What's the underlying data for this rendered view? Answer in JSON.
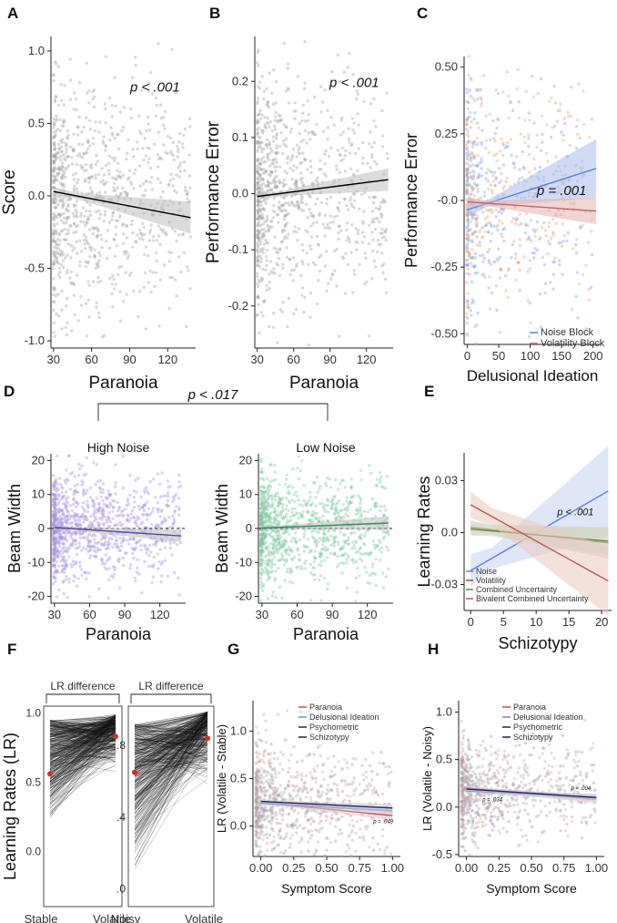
{
  "chart_data": [
    {
      "panel": "A",
      "type": "scatter",
      "xlabel": "Paranoia",
      "ylabel": "Score",
      "xlim": [
        28,
        142
      ],
      "ylim": [
        -1.05,
        1.1
      ],
      "xticks": [
        {
          "v": 30,
          "t": "30"
        },
        {
          "v": 60,
          "t": "60"
        },
        {
          "v": 90,
          "t": "90"
        },
        {
          "v": 120,
          "t": "120"
        }
      ],
      "yticks": [
        {
          "v": 1,
          "t": "1.0"
        },
        {
          "v": 0.5,
          "t": "0.5"
        },
        {
          "v": 0,
          "t": "0.0"
        },
        {
          "v": -0.5,
          "t": "-0.5"
        },
        {
          "v": -1,
          "t": "-1.0"
        }
      ],
      "annotation": {
        "x": 110,
        "y": 0.72,
        "t": "p < .001"
      },
      "series": [
        {
          "name": "Fit",
          "color": "#000000",
          "band": "#bdbdbd",
          "line": [
            [
              30,
              0.03
            ],
            [
              138,
              -0.15
            ]
          ],
          "ci": [
            0.02,
            0.11
          ]
        }
      ],
      "scatter": {
        "seed": 11,
        "color": "#9e9e9e",
        "n": 900,
        "ymean": 0.0,
        "ysd": 0.42
      }
    },
    {
      "panel": "B",
      "type": "scatter",
      "xlabel": "Paranoia",
      "ylabel": "Performance Error",
      "xlim": [
        28,
        142
      ],
      "ylim": [
        -0.275,
        0.28
      ],
      "xticks": [
        {
          "v": 30,
          "t": "30"
        },
        {
          "v": 60,
          "t": "60"
        },
        {
          "v": 90,
          "t": "90"
        },
        {
          "v": 120,
          "t": "120"
        }
      ],
      "yticks": [
        {
          "v": 0.2,
          "t": "0.2"
        },
        {
          "v": 0.1,
          "t": "0.1"
        },
        {
          "v": 0,
          "t": "0.0"
        },
        {
          "v": -0.1,
          "t": "-0.1"
        },
        {
          "v": -0.2,
          "t": "-0.2"
        }
      ],
      "annotation": {
        "x": 110,
        "y": 0.19,
        "t": "p < .001"
      },
      "series": [
        {
          "name": "Fit",
          "color": "#000000",
          "band": "#bdbdbd",
          "line": [
            [
              30,
              -0.005
            ],
            [
              138,
              0.025
            ]
          ],
          "ci": [
            0.004,
            0.02
          ]
        }
      ],
      "scatter": {
        "seed": 22,
        "color": "#9e9e9e",
        "n": 900,
        "ymean": 0.0,
        "ysd": 0.1
      }
    },
    {
      "panel": "C",
      "type": "scatter",
      "xlabel": "Delusional Ideation",
      "ylabel": "Performance Error",
      "xlim": [
        -5,
        212
      ],
      "ylim": [
        -0.54,
        0.54
      ],
      "xticks": [
        {
          "v": 0,
          "t": "0"
        },
        {
          "v": 50,
          "t": "50"
        },
        {
          "v": 100,
          "t": "100"
        },
        {
          "v": 150,
          "t": "150"
        },
        {
          "v": 200,
          "t": "200"
        }
      ],
      "yticks": [
        {
          "v": 0.5,
          "t": "0.50"
        },
        {
          "v": 0.25,
          "t": "0.25"
        },
        {
          "v": 0,
          "t": "-0.0"
        },
        {
          "v": -0.25,
          "t": "-0.25"
        },
        {
          "v": -0.5,
          "t": "-0.50"
        }
      ],
      "annotation": {
        "x": 150,
        "y": 0.02,
        "t": "p = .001"
      },
      "legend": {
        "entries": [
          "Noise Block",
          "Volatility Block"
        ],
        "pos": "bottom-right"
      },
      "series": [
        {
          "name": "Noise Block",
          "color": "#5b7fd6",
          "band": "#a9bbec",
          "line": [
            [
              0,
              -0.035
            ],
            [
              205,
              0.12
            ]
          ],
          "ci": [
            0.012,
            0.11
          ]
        },
        {
          "name": "Volatility Block",
          "color": "#c0675f",
          "band": "#e6b3ad",
          "line": [
            [
              0,
              -0.005
            ],
            [
              205,
              -0.04
            ]
          ],
          "ci": [
            0.01,
            0.05
          ]
        }
      ],
      "scatter": {
        "seed": 33,
        "colors": [
          "#7f9ae0",
          "#e0a07a"
        ],
        "n": 700,
        "ymean": 0.0,
        "ysd": 0.22,
        "xskew": true
      }
    },
    {
      "panel": "D1",
      "type": "scatter",
      "subtitle": "High Noise",
      "xlabel": "Paranoia",
      "ylabel": "Beam Width",
      "xlim": [
        27,
        142
      ],
      "ylim": [
        -22,
        22
      ],
      "xticks": [
        {
          "v": 30,
          "t": "30"
        },
        {
          "v": 60,
          "t": "60"
        },
        {
          "v": 90,
          "t": "90"
        },
        {
          "v": 120,
          "t": "120"
        }
      ],
      "yticks": [
        {
          "v": 20,
          "t": "20"
        },
        {
          "v": 10,
          "t": "10"
        },
        {
          "v": 0,
          "t": "0"
        },
        {
          "v": -10,
          "t": "-10"
        },
        {
          "v": -20,
          "t": "-20"
        }
      ],
      "series": [
        {
          "name": "Fit",
          "color": "#5a46b0",
          "band": "#bdbdbd",
          "line": [
            [
              30,
              0.3
            ],
            [
              138,
              -2.2
            ]
          ],
          "ci": [
            0.6,
            1.8
          ]
        }
      ],
      "scatter": {
        "seed": 44,
        "color": "#a48ee0",
        "n": 1000,
        "ymean": 0,
        "ysd": 8
      }
    },
    {
      "panel": "D2",
      "type": "scatter",
      "subtitle": "Low Noise",
      "xlabel": "Paranoia",
      "ylabel": "Beam Width",
      "xlim": [
        27,
        142
      ],
      "ylim": [
        -22,
        22
      ],
      "xticks": [
        {
          "v": 30,
          "t": "30"
        },
        {
          "v": 60,
          "t": "60"
        },
        {
          "v": 90,
          "t": "90"
        },
        {
          "v": 120,
          "t": "120"
        }
      ],
      "yticks": [
        {
          "v": 20,
          "t": "20"
        },
        {
          "v": 10,
          "t": "10"
        },
        {
          "v": 0,
          "t": "0"
        },
        {
          "v": -10,
          "t": "-10"
        },
        {
          "v": -20,
          "t": "-20"
        }
      ],
      "series": [
        {
          "name": "Fit",
          "color": "#2f8a5a",
          "band": "#bdbdbd",
          "line": [
            [
              30,
              0.1
            ],
            [
              138,
              1.6
            ]
          ],
          "ci": [
            0.6,
            2.0
          ]
        }
      ],
      "scatter": {
        "seed": 55,
        "color": "#7cc5a0",
        "n": 1000,
        "ymean": 0,
        "ysd": 8
      }
    },
    {
      "panel": "E",
      "type": "line",
      "xlabel": "Schizotypy",
      "ylabel": "Learning Rates",
      "xlim": [
        -1,
        21.5
      ],
      "ylim": [
        -0.045,
        0.046
      ],
      "xticks": [
        {
          "v": 0,
          "t": "0"
        },
        {
          "v": 5,
          "t": "5"
        },
        {
          "v": 10,
          "t": "10"
        },
        {
          "v": 15,
          "t": "15"
        },
        {
          "v": 20,
          "t": "20"
        }
      ],
      "yticks": [
        {
          "v": 0.03,
          "t": "0.03"
        },
        {
          "v": 0,
          "t": "0.0"
        },
        {
          "v": -0.03,
          "t": "-0.03"
        }
      ],
      "annotation": {
        "x": 16,
        "y": 0.01,
        "t": "p < .001"
      },
      "legend": {
        "entries": [
          "Noise",
          "Volatility",
          "Combined Uncertainty",
          "Bivalent Combined Uncertainty"
        ],
        "pos": "bottom-left"
      },
      "series": [
        {
          "name": "Noise",
          "color": "#5b7fd6",
          "band": "#c5d1f2",
          "line": [
            [
              0,
              -0.022
            ],
            [
              21,
              0.024
            ]
          ],
          "ci": [
            0.006,
            0.026
          ]
        },
        {
          "name": "Volatility",
          "color": "#8a5a3a",
          "band": "#d8cbbe",
          "line": [
            [
              0,
              0.003
            ],
            [
              21,
              -0.006
            ]
          ],
          "ci": [
            0.003,
            0.009
          ]
        },
        {
          "name": "Combined Uncertainty",
          "color": "#5f8a3a",
          "band": "#cdd8c2",
          "line": [
            [
              0,
              0.002
            ],
            [
              21,
              -0.005
            ]
          ],
          "ci": [
            0.003,
            0.008
          ]
        },
        {
          "name": "Bivalent Combined Uncertainty",
          "color": "#b45a48",
          "band": "#ecc8c0",
          "line": [
            [
              0,
              0.016
            ],
            [
              21,
              -0.028
            ]
          ],
          "ci": [
            0.005,
            0.02
          ]
        }
      ]
    },
    {
      "panel": "F1",
      "type": "line",
      "subtitle": "LR difference",
      "ylabel": "Learning Rates (LR)",
      "categories": [
        "Stable",
        "Volatile"
      ],
      "ylim": [
        -0.4,
        1.05
      ],
      "yticks": [
        {
          "v": 1,
          "t": "1.0"
        },
        {
          "v": 0.5,
          "t": "0.5"
        },
        {
          "v": 0,
          "t": "0.0"
        }
      ],
      "means": [
        0.56,
        0.83
      ],
      "lines": {
        "seed": 66,
        "n": 400,
        "from": [
          0.2,
          0.95
        ],
        "to": [
          0.55,
          0.99
        ]
      }
    },
    {
      "panel": "F2",
      "type": "line",
      "subtitle": "LR difference",
      "categories": [
        "Noisy",
        "Volatile"
      ],
      "ylim": [
        -0.1,
        1.02
      ],
      "yticks": [
        {
          "v": 0.8,
          "t": ".8"
        },
        {
          "v": 0.4,
          "t": ".4"
        },
        {
          "v": 0,
          "t": ".0"
        }
      ],
      "means": [
        0.65,
        0.84
      ],
      "lines": {
        "seed": 77,
        "n": 400,
        "from": [
          0.1,
          0.92
        ],
        "to": [
          0.55,
          0.99
        ]
      }
    },
    {
      "panel": "G",
      "type": "scatter",
      "xlabel": "Symptom Score",
      "ylabel": "LR (Volatile - Stable)",
      "xlim": [
        -0.06,
        1.06
      ],
      "ylim": [
        -0.32,
        1.32
      ],
      "xticks": [
        {
          "v": 0,
          "t": "0.00"
        },
        {
          "v": 0.25,
          "t": "0.25"
        },
        {
          "v": 0.5,
          "t": "0.50"
        },
        {
          "v": 0.75,
          "t": "0.75"
        },
        {
          "v": 1,
          "t": "1.00"
        }
      ],
      "yticks": [
        {
          "v": 1,
          "t": "1.0"
        },
        {
          "v": 0.5,
          "t": "0.5"
        },
        {
          "v": 0,
          "t": "0.0"
        }
      ],
      "annotation": {
        "x": 0.93,
        "y": 0.03,
        "t": "p = .049"
      },
      "legend": {
        "entries": [
          "Paranoia",
          "Delusional Ideation",
          "Psychometric",
          "Schizotypy"
        ],
        "pos": "top-right"
      },
      "series": [
        {
          "name": "Paranoia",
          "color": "#c0504a",
          "band": "#e8c4c0",
          "line": [
            [
              0,
              0.25
            ],
            [
              1,
              0.11
            ]
          ],
          "ci": [
            0.02,
            0.05
          ]
        },
        {
          "name": "Delusional Ideation",
          "color": "#6d8fc7",
          "band": "#c9d6ec",
          "line": [
            [
              0,
              0.24
            ],
            [
              1,
              0.16
            ]
          ],
          "ci": [
            0.02,
            0.04
          ]
        },
        {
          "name": "Psychometric Schizotypy",
          "color": "#2b1f4f",
          "band": "#c7c2d6",
          "line": [
            [
              0,
              0.26
            ],
            [
              1,
              0.19
            ]
          ],
          "ci": [
            0.02,
            0.04
          ]
        }
      ],
      "scatter": {
        "seed": 88,
        "colors": [
          "#d8a39e",
          "#b0b0b0",
          "#9a94b0"
        ],
        "n": 800,
        "ymean": 0.25,
        "ysd": 0.3,
        "xskew": true
      }
    },
    {
      "panel": "H",
      "type": "scatter",
      "xlabel": "Symptom Score",
      "ylabel": "LR (Volatile - Noisy)",
      "xlim": [
        -0.06,
        1.06
      ],
      "ylim": [
        -0.52,
        1.12
      ],
      "xticks": [
        {
          "v": 0,
          "t": "0.00"
        },
        {
          "v": 0.25,
          "t": "0.25"
        },
        {
          "v": 0.5,
          "t": "0.50"
        },
        {
          "v": 0.75,
          "t": "0.75"
        },
        {
          "v": 1,
          "t": "1.00"
        }
      ],
      "yticks": [
        {
          "v": 1,
          "t": "1.0"
        },
        {
          "v": 0.5,
          "t": "0.5"
        },
        {
          "v": 0,
          "t": "0.0"
        },
        {
          "v": -0.5,
          "t": "-0.5"
        }
      ],
      "annotations": [
        {
          "x": 0.2,
          "y": 0.06,
          "t": "p = .034"
        },
        {
          "x": 0.88,
          "y": 0.18,
          "t": "p = .004"
        }
      ],
      "legend": {
        "entries": [
          "Paranoia",
          "Delusional Ideation",
          "Psychometric",
          "Schizotypy"
        ],
        "pos": "top-right"
      },
      "series": [
        {
          "name": "Paranoia",
          "color": "#c0504a",
          "band": "#e8c4c0",
          "line": [
            [
              0,
              0.2
            ],
            [
              1,
              0.08
            ]
          ],
          "ci": [
            0.02,
            0.04
          ]
        },
        {
          "name": "Delusional Ideation",
          "color": "#6d8fc7",
          "band": "#c9d6ec",
          "line": [
            [
              0,
              0.17
            ],
            [
              1,
              0.1
            ]
          ],
          "ci": [
            0.02,
            0.04
          ]
        },
        {
          "name": "Psychometric Schizotypy",
          "color": "#2b1f4f",
          "band": "#c7c2d6",
          "line": [
            [
              0,
              0.19
            ],
            [
              1,
              0.1
            ]
          ],
          "ci": [
            0.02,
            0.03
          ]
        }
      ],
      "scatter": {
        "seed": 99,
        "colors": [
          "#d8a39e",
          "#b0b0b0",
          "#9a94b0"
        ],
        "n": 800,
        "ymean": 0.18,
        "ysd": 0.25,
        "xskew": true
      }
    }
  ],
  "panel_labels": [
    "A",
    "B",
    "C",
    "D",
    "E",
    "F",
    "G",
    "H"
  ],
  "d_comparison": "p < .017",
  "colors": {
    "axis": "#222222",
    "tick": "#333333",
    "grey": "#9e9e9e"
  }
}
